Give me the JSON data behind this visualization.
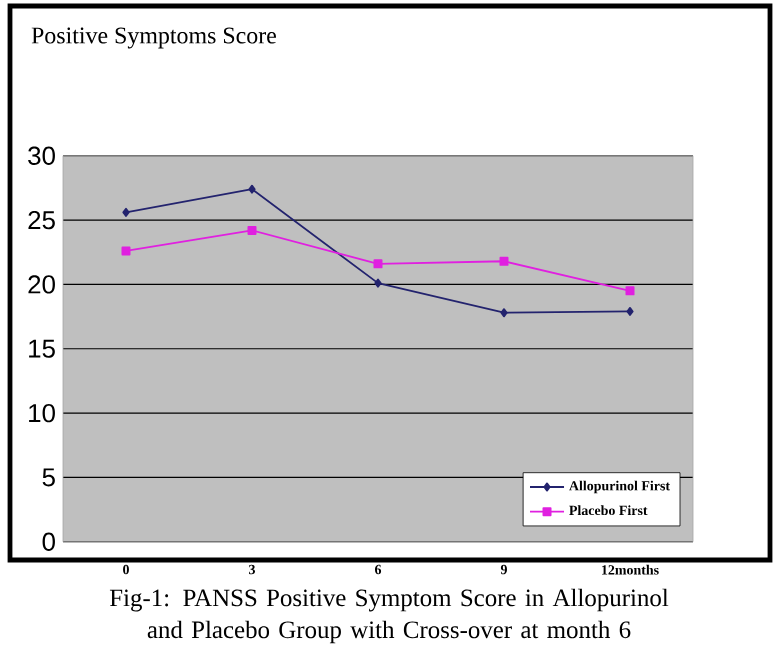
{
  "chart_data": {
    "type": "line",
    "title": "Positive Symptoms Score",
    "categories": [
      "0",
      "3",
      "6",
      "9",
      "12months"
    ],
    "series": [
      {
        "name": "Allopurinol First",
        "color": "#23236e",
        "marker": "diamond",
        "values": [
          25.6,
          27.4,
          20.1,
          17.8,
          17.9
        ]
      },
      {
        "name": "Placebo First",
        "color": "#e020e0",
        "marker": "square",
        "values": [
          22.6,
          24.2,
          21.6,
          21.8,
          19.5
        ]
      }
    ],
    "ylim": [
      0,
      30
    ],
    "yticks": [
      0,
      5,
      10,
      15,
      20,
      25,
      30
    ],
    "grid": "y",
    "legend": "bottom right",
    "annotations": [
      "Fig-1: PANSS Positive Symptom Score in Allopurinol and Placebo Group with Cross-over at month 6"
    ]
  }
}
